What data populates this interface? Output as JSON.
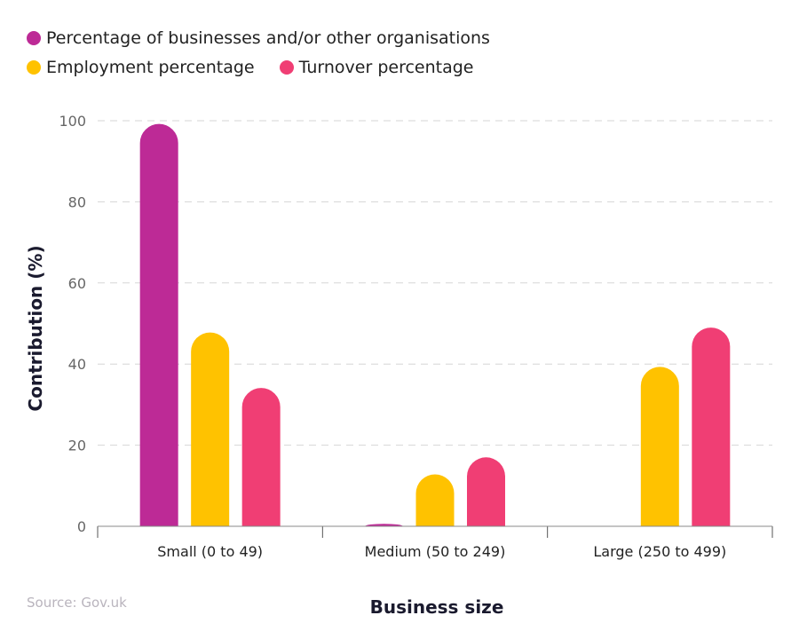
{
  "chart_data": {
    "type": "bar",
    "categories": [
      "Small (0 to 49)",
      "Medium (50 to 249)",
      "Large (250 to 499)"
    ],
    "series": [
      {
        "name": "Percentage of businesses and/or other organisations",
        "color": "#bd2a96",
        "values": [
          99.2,
          0.6,
          0.1
        ]
      },
      {
        "name": "Employment percentage",
        "color": "#ffc200",
        "values": [
          47.8,
          12.8,
          39.3
        ]
      },
      {
        "name": "Turnover percentage",
        "color": "#f03e74",
        "values": [
          34.1,
          17.0,
          49.0
        ]
      }
    ],
    "xlabel": "Business size",
    "ylabel": "Contribution (%)",
    "ylim": [
      0,
      100
    ],
    "yticks": [
      "0",
      "20",
      "40",
      "60",
      "80",
      "100"
    ],
    "grid": true,
    "legend_position": "top-left",
    "source": "Source: Gov.uk"
  }
}
